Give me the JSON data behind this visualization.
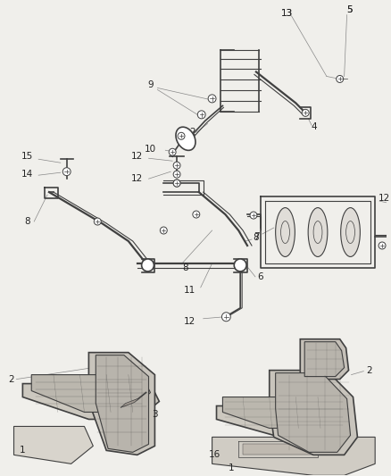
{
  "background_color": "#f0efeb",
  "line_color": "#404040",
  "label_color": "#222222",
  "figsize": [
    4.38,
    5.33
  ],
  "dpi": 100
}
